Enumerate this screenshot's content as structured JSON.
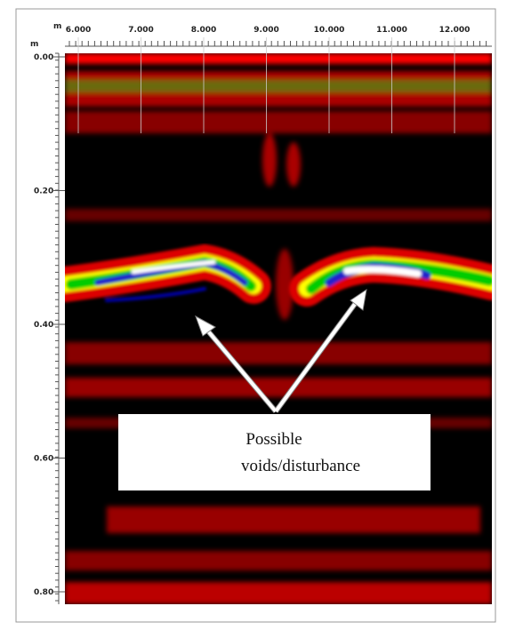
{
  "top_axis": {
    "unit": "m",
    "ticks": [
      "6.000",
      "7.000",
      "8.000",
      "9.000",
      "10.000",
      "11.000",
      "12.000"
    ]
  },
  "left_axis": {
    "unit": "m",
    "ticks": [
      "0.00",
      "0.20",
      "0.40",
      "0.60",
      "0.80"
    ]
  },
  "annotation": {
    "lines": [
      "Possible",
      "voids/disturbance"
    ]
  }
}
